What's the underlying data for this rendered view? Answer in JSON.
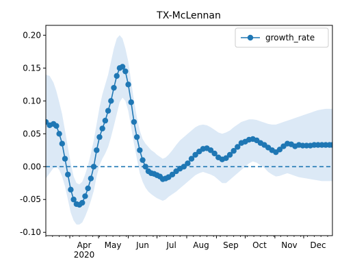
{
  "chart_data": {
    "type": "line",
    "title": "TX-McLennan",
    "xlabel": "",
    "ylabel": "",
    "ylim": [
      -0.105,
      0.215
    ],
    "xlim": [
      "2020-03-07",
      "2020-12-31"
    ],
    "grid": false,
    "legend_position": "top-right",
    "y_ticks": [
      "-0.10",
      "-0.05",
      "0.00",
      "0.05",
      "0.10",
      "0.15",
      "0.20"
    ],
    "x_ticks": [
      {
        "date": "2020-04-01",
        "label": "Apr",
        "sublabel": "2020"
      },
      {
        "date": "2020-05-01",
        "label": "May",
        "sublabel": ""
      },
      {
        "date": "2020-06-01",
        "label": "Jun",
        "sublabel": ""
      },
      {
        "date": "2020-07-01",
        "label": "Jul",
        "sublabel": ""
      },
      {
        "date": "2020-08-01",
        "label": "Aug",
        "sublabel": ""
      },
      {
        "date": "2020-09-01",
        "label": "Sep",
        "sublabel": ""
      },
      {
        "date": "2020-10-01",
        "label": "Oct",
        "sublabel": ""
      },
      {
        "date": "2020-11-01",
        "label": "Nov",
        "sublabel": ""
      },
      {
        "date": "2020-12-01",
        "label": "Dec",
        "sublabel": ""
      }
    ],
    "reference_line": {
      "y": 0.0,
      "style": "dashed"
    },
    "series": [
      {
        "name": "growth_rate",
        "color": "#1f77b4",
        "band_color": "#dce9f6",
        "x": [
          "2020-03-07",
          "2020-03-11",
          "2020-03-15",
          "2020-03-18",
          "2020-03-21",
          "2020-03-24",
          "2020-03-27",
          "2020-03-30",
          "2020-04-02",
          "2020-04-05",
          "2020-04-08",
          "2020-04-11",
          "2020-04-14",
          "2020-04-17",
          "2020-04-20",
          "2020-04-23",
          "2020-04-26",
          "2020-04-29",
          "2020-05-02",
          "2020-05-05",
          "2020-05-08",
          "2020-05-11",
          "2020-05-14",
          "2020-05-17",
          "2020-05-20",
          "2020-05-23",
          "2020-05-26",
          "2020-05-29",
          "2020-06-01",
          "2020-06-04",
          "2020-06-07",
          "2020-06-10",
          "2020-06-13",
          "2020-06-16",
          "2020-06-19",
          "2020-06-22",
          "2020-06-25",
          "2020-06-28",
          "2020-07-01",
          "2020-07-04",
          "2020-07-07",
          "2020-07-10",
          "2020-07-13",
          "2020-07-17",
          "2020-07-21",
          "2020-07-25",
          "2020-07-29",
          "2020-08-02",
          "2020-08-06",
          "2020-08-10",
          "2020-08-14",
          "2020-08-18",
          "2020-08-22",
          "2020-08-26",
          "2020-08-30",
          "2020-09-03",
          "2020-09-07",
          "2020-09-11",
          "2020-09-15",
          "2020-09-19",
          "2020-09-23",
          "2020-09-27",
          "2020-10-01",
          "2020-10-05",
          "2020-10-09",
          "2020-10-13",
          "2020-10-17",
          "2020-10-21",
          "2020-10-25",
          "2020-10-29",
          "2020-11-02",
          "2020-11-06",
          "2020-11-10",
          "2020-11-14",
          "2020-11-18",
          "2020-11-22",
          "2020-11-26",
          "2020-11-30",
          "2020-12-04",
          "2020-12-08",
          "2020-12-12",
          "2020-12-16",
          "2020-12-20",
          "2020-12-24",
          "2020-12-28",
          "2020-12-31"
        ],
        "y": [
          0.068,
          0.063,
          0.065,
          0.062,
          0.05,
          0.035,
          0.012,
          -0.012,
          -0.035,
          -0.05,
          -0.057,
          -0.058,
          -0.055,
          -0.045,
          -0.033,
          -0.018,
          0.0,
          0.025,
          0.045,
          0.058,
          0.07,
          0.085,
          0.1,
          0.12,
          0.138,
          0.15,
          0.152,
          0.145,
          0.125,
          0.098,
          0.068,
          0.045,
          0.025,
          0.01,
          0.0,
          -0.007,
          -0.01,
          -0.011,
          -0.013,
          -0.015,
          -0.019,
          -0.018,
          -0.016,
          -0.012,
          -0.007,
          -0.003,
          0.0,
          0.005,
          0.012,
          0.018,
          0.023,
          0.027,
          0.028,
          0.025,
          0.02,
          0.014,
          0.011,
          0.013,
          0.018,
          0.024,
          0.03,
          0.036,
          0.038,
          0.041,
          0.042,
          0.04,
          0.036,
          0.033,
          0.029,
          0.025,
          0.022,
          0.026,
          0.031,
          0.035,
          0.034,
          0.031,
          0.033,
          0.032,
          0.032,
          0.032,
          0.033,
          0.033,
          0.033,
          0.033,
          0.033,
          0.033
        ],
        "upper": [
          0.14,
          0.138,
          0.128,
          0.115,
          0.098,
          0.08,
          0.055,
          0.03,
          0.005,
          -0.015,
          -0.025,
          -0.027,
          -0.023,
          -0.012,
          0.002,
          0.02,
          0.04,
          0.065,
          0.09,
          0.11,
          0.125,
          0.14,
          0.16,
          0.18,
          0.195,
          0.2,
          0.195,
          0.18,
          0.16,
          0.13,
          0.1,
          0.075,
          0.055,
          0.042,
          0.035,
          0.03,
          0.025,
          0.022,
          0.018,
          0.015,
          0.012,
          0.014,
          0.018,
          0.025,
          0.033,
          0.04,
          0.045,
          0.05,
          0.055,
          0.06,
          0.063,
          0.064,
          0.063,
          0.06,
          0.056,
          0.052,
          0.05,
          0.052,
          0.055,
          0.06,
          0.064,
          0.068,
          0.07,
          0.072,
          0.072,
          0.071,
          0.069,
          0.067,
          0.065,
          0.064,
          0.064,
          0.066,
          0.068,
          0.07,
          0.072,
          0.074,
          0.076,
          0.078,
          0.08,
          0.082,
          0.084,
          0.086,
          0.087,
          0.088,
          0.088,
          0.088
        ],
        "lower": [
          -0.018,
          -0.01,
          -0.002,
          0.0,
          -0.005,
          -0.015,
          -0.03,
          -0.05,
          -0.07,
          -0.082,
          -0.088,
          -0.088,
          -0.085,
          -0.076,
          -0.065,
          -0.052,
          -0.037,
          -0.015,
          0.002,
          0.012,
          0.02,
          0.03,
          0.045,
          0.062,
          0.08,
          0.098,
          0.105,
          0.1,
          0.085,
          0.06,
          0.035,
          0.012,
          -0.01,
          -0.023,
          -0.032,
          -0.038,
          -0.042,
          -0.045,
          -0.048,
          -0.05,
          -0.052,
          -0.05,
          -0.046,
          -0.042,
          -0.038,
          -0.033,
          -0.028,
          -0.023,
          -0.018,
          -0.013,
          -0.01,
          -0.008,
          -0.01,
          -0.012,
          -0.015,
          -0.02,
          -0.025,
          -0.025,
          -0.02,
          -0.015,
          -0.01,
          -0.005,
          0.0,
          0.005,
          0.008,
          0.006,
          0.002,
          -0.002,
          -0.008,
          -0.012,
          -0.015,
          -0.014,
          -0.012,
          -0.01,
          -0.012,
          -0.014,
          -0.016,
          -0.017,
          -0.018,
          -0.019,
          -0.02,
          -0.021,
          -0.022,
          -0.022,
          -0.022,
          -0.022
        ]
      }
    ]
  }
}
